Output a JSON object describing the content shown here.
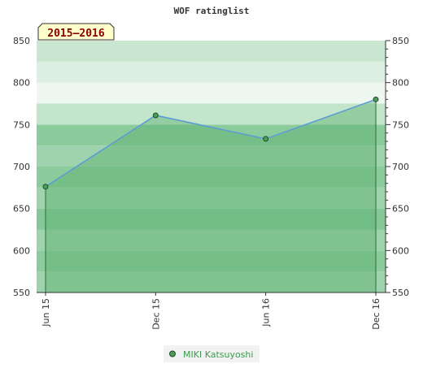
{
  "chart_data": {
    "type": "area",
    "title": "WOF ratinglist",
    "period_label": "2015–2016",
    "categories": [
      "Jun 15",
      "Dec 15",
      "Jun 16",
      "Dec 16"
    ],
    "series": [
      {
        "name": "MIKI Katsuyoshi",
        "values": [
          676,
          761,
          733,
          780
        ]
      }
    ],
    "ylim": [
      550,
      850
    ],
    "yticks": [
      550,
      600,
      650,
      700,
      750,
      800,
      850
    ],
    "axis_ticks_both_sides": true,
    "legend_position": "bottom-center",
    "colors": {
      "line": "#5b9bd5",
      "marker": "#4a9e5a",
      "marker_stroke": "#1e4d2b",
      "area": "#5cb06f",
      "badge_fill": "#ffffcc",
      "legend_text": "#3a9d4e"
    }
  }
}
